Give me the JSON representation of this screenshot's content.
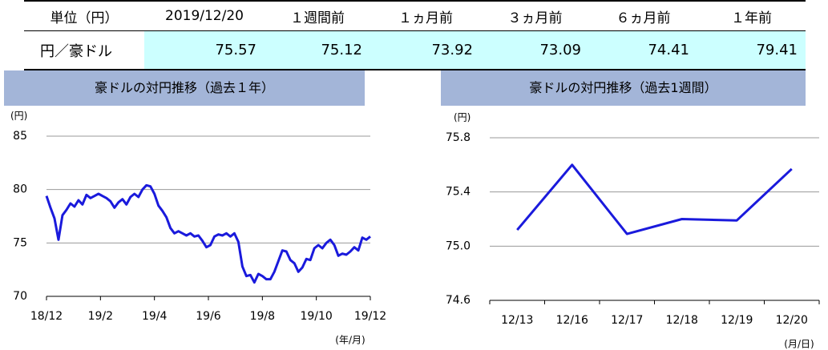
{
  "table": {
    "header": [
      "単位（円）",
      "2019/12/20",
      "１週間前",
      "１ヵ月前",
      "３ヵ月前",
      "６ヵ月前",
      "１年前"
    ],
    "rows": [
      [
        "円／豪ドル",
        "75.57",
        "75.12",
        "73.92",
        "73.09",
        "74.41",
        "79.41"
      ]
    ]
  },
  "charts": [
    {
      "type": "line",
      "title": "豪ドルの対円推移（過去１年）",
      "y_unit": "(円)",
      "x_unit": "(年/月)",
      "xticks": [
        "18/12",
        "19/2",
        "19/4",
        "19/6",
        "19/8",
        "19/10",
        "19/12"
      ],
      "ylim": [
        70,
        85
      ],
      "yticks": [
        70,
        75,
        80,
        85
      ],
      "grid": true,
      "color": "#1a1adc",
      "values": [
        79.4,
        78.3,
        77.3,
        75.3,
        77.6,
        78.1,
        78.7,
        78.4,
        79.0,
        78.6,
        79.5,
        79.2,
        79.4,
        79.6,
        79.4,
        79.2,
        78.9,
        78.3,
        78.8,
        79.1,
        78.6,
        79.3,
        79.6,
        79.3,
        80.0,
        80.4,
        80.3,
        79.6,
        78.5,
        78.0,
        77.4,
        76.4,
        75.9,
        76.1,
        75.9,
        75.7,
        75.9,
        75.6,
        75.7,
        75.2,
        74.6,
        74.8,
        75.6,
        75.8,
        75.7,
        75.9,
        75.6,
        75.9,
        75.1,
        72.8,
        71.9,
        72.0,
        71.3,
        72.1,
        71.9,
        71.6,
        71.6,
        72.3,
        73.3,
        74.3,
        74.2,
        73.4,
        73.1,
        72.3,
        72.7,
        73.5,
        73.4,
        74.5,
        74.8,
        74.5,
        75.0,
        75.3,
        74.8,
        73.8,
        74.0,
        73.9,
        74.2,
        74.6,
        74.3,
        75.5,
        75.3,
        75.6
      ]
    },
    {
      "type": "line",
      "title": "豪ドルの対円推移（過去1週間）",
      "y_unit": "(円)",
      "x_unit": "(月/日)",
      "categories": [
        "12/13",
        "12/16",
        "12/17",
        "12/18",
        "12/19",
        "12/20"
      ],
      "ylim": [
        74.6,
        75.8
      ],
      "yticks": [
        74.6,
        {
          "value": 75,
          "label": "75.0"
        },
        75.4,
        75.8
      ],
      "grid": true,
      "color": "#1a1adc",
      "values": [
        75.12,
        75.6,
        75.09,
        75.2,
        75.19,
        75.57
      ]
    }
  ]
}
